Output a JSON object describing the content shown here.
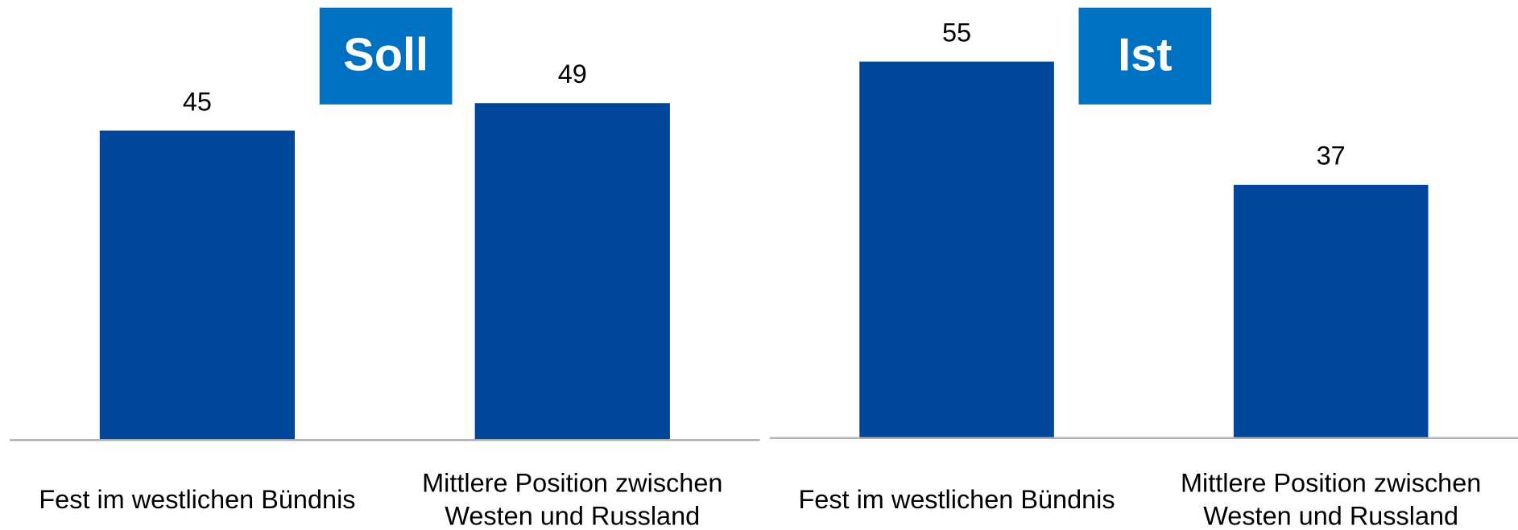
{
  "chart_data": [
    {
      "type": "bar",
      "title": "Soll",
      "categories": [
        "Fest im westlichen Bündnis",
        "Mittlere Position zwischen Westen und Russland"
      ],
      "values": [
        45,
        49
      ],
      "color": "#00479b",
      "ylim": [
        0,
        64
      ]
    },
    {
      "type": "bar",
      "title": "Ist",
      "categories": [
        "Fest im westlichen Bündnis",
        "Mittlere Position zwischen Westen und Russland"
      ],
      "values": [
        55,
        37
      ],
      "color": "#00479b",
      "ylim": [
        0,
        64
      ]
    }
  ]
}
